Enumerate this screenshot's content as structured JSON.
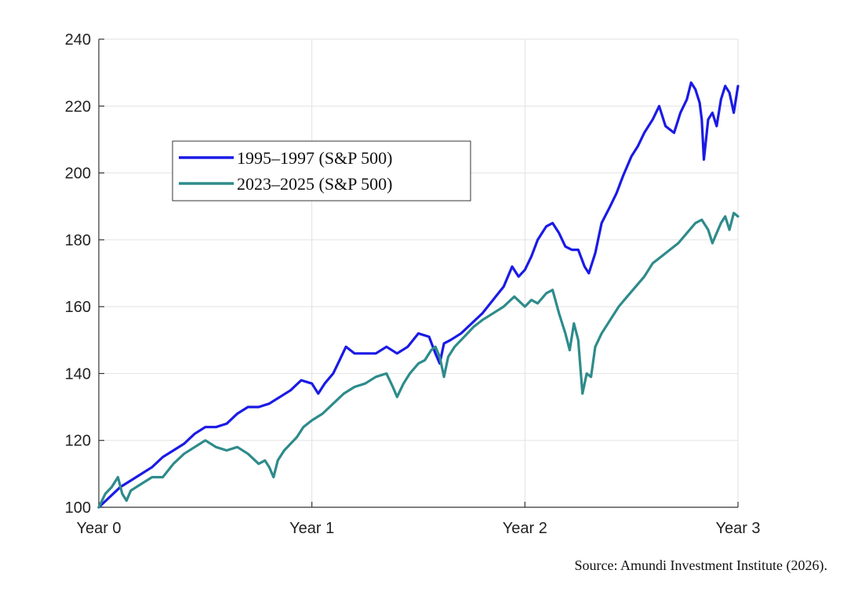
{
  "chart_data": {
    "type": "line",
    "title": "",
    "xlabel": "",
    "ylabel": "",
    "xlim": [
      0,
      3
    ],
    "ylim": [
      100,
      240
    ],
    "x_ticks": [
      0,
      1,
      2,
      3
    ],
    "x_tick_labels": [
      "Year 0",
      "Year 1",
      "Year 2",
      "Year 3"
    ],
    "y_ticks": [
      100,
      120,
      140,
      160,
      180,
      200,
      220,
      240
    ],
    "y_tick_labels": [
      "100",
      "120",
      "140",
      "160",
      "180",
      "200",
      "220",
      "240"
    ],
    "grid": true,
    "legend_placement": "upper-left",
    "series": [
      {
        "name": "1995–1997 (S&P 500)",
        "color": "#1a1ae6",
        "points": [
          [
            0.0,
            100
          ],
          [
            0.05,
            103
          ],
          [
            0.1,
            106
          ],
          [
            0.15,
            108
          ],
          [
            0.2,
            110
          ],
          [
            0.25,
            112
          ],
          [
            0.3,
            115
          ],
          [
            0.35,
            117
          ],
          [
            0.4,
            119
          ],
          [
            0.45,
            122
          ],
          [
            0.5,
            124
          ],
          [
            0.55,
            124
          ],
          [
            0.6,
            125
          ],
          [
            0.65,
            128
          ],
          [
            0.7,
            130
          ],
          [
            0.75,
            130
          ],
          [
            0.8,
            131
          ],
          [
            0.85,
            133
          ],
          [
            0.9,
            135
          ],
          [
            0.95,
            138
          ],
          [
            1.0,
            137
          ],
          [
            1.03,
            134
          ],
          [
            1.06,
            137
          ],
          [
            1.1,
            140
          ],
          [
            1.13,
            144
          ],
          [
            1.16,
            148
          ],
          [
            1.2,
            146
          ],
          [
            1.25,
            146
          ],
          [
            1.3,
            146
          ],
          [
            1.35,
            148
          ],
          [
            1.4,
            146
          ],
          [
            1.45,
            148
          ],
          [
            1.5,
            152
          ],
          [
            1.55,
            151
          ],
          [
            1.58,
            146
          ],
          [
            1.6,
            143
          ],
          [
            1.62,
            149
          ],
          [
            1.65,
            150
          ],
          [
            1.7,
            152
          ],
          [
            1.75,
            155
          ],
          [
            1.8,
            158
          ],
          [
            1.85,
            162
          ],
          [
            1.9,
            166
          ],
          [
            1.94,
            172
          ],
          [
            1.97,
            169
          ],
          [
            2.0,
            171
          ],
          [
            2.03,
            175
          ],
          [
            2.06,
            180
          ],
          [
            2.1,
            184
          ],
          [
            2.13,
            185
          ],
          [
            2.16,
            182
          ],
          [
            2.19,
            178
          ],
          [
            2.22,
            177
          ],
          [
            2.25,
            177
          ],
          [
            2.28,
            172
          ],
          [
            2.3,
            170
          ],
          [
            2.33,
            176
          ],
          [
            2.36,
            185
          ],
          [
            2.4,
            190
          ],
          [
            2.43,
            194
          ],
          [
            2.46,
            199
          ],
          [
            2.5,
            205
          ],
          [
            2.53,
            208
          ],
          [
            2.56,
            212
          ],
          [
            2.6,
            216
          ],
          [
            2.63,
            220
          ],
          [
            2.66,
            214
          ],
          [
            2.7,
            212
          ],
          [
            2.73,
            218
          ],
          [
            2.76,
            222
          ],
          [
            2.78,
            227
          ],
          [
            2.8,
            225
          ],
          [
            2.82,
            221
          ],
          [
            2.83,
            216
          ],
          [
            2.84,
            204
          ],
          [
            2.86,
            216
          ],
          [
            2.88,
            218
          ],
          [
            2.9,
            214
          ],
          [
            2.92,
            222
          ],
          [
            2.94,
            226
          ],
          [
            2.96,
            224
          ],
          [
            2.98,
            218
          ],
          [
            3.0,
            226
          ]
        ]
      },
      {
        "name": "2023–2025 (S&P 500)",
        "color": "#2e8b8b",
        "points": [
          [
            0.0,
            100
          ],
          [
            0.03,
            104
          ],
          [
            0.06,
            106
          ],
          [
            0.09,
            109
          ],
          [
            0.11,
            104
          ],
          [
            0.13,
            102
          ],
          [
            0.15,
            105
          ],
          [
            0.2,
            107
          ],
          [
            0.25,
            109
          ],
          [
            0.3,
            109
          ],
          [
            0.35,
            113
          ],
          [
            0.4,
            116
          ],
          [
            0.45,
            118
          ],
          [
            0.5,
            120
          ],
          [
            0.55,
            118
          ],
          [
            0.6,
            117
          ],
          [
            0.65,
            118
          ],
          [
            0.7,
            116
          ],
          [
            0.75,
            113
          ],
          [
            0.78,
            114
          ],
          [
            0.8,
            112
          ],
          [
            0.82,
            109
          ],
          [
            0.84,
            114
          ],
          [
            0.87,
            117
          ],
          [
            0.9,
            119
          ],
          [
            0.93,
            121
          ],
          [
            0.96,
            124
          ],
          [
            1.0,
            126
          ],
          [
            1.05,
            128
          ],
          [
            1.1,
            131
          ],
          [
            1.15,
            134
          ],
          [
            1.2,
            136
          ],
          [
            1.25,
            137
          ],
          [
            1.3,
            139
          ],
          [
            1.35,
            140
          ],
          [
            1.38,
            136
          ],
          [
            1.4,
            133
          ],
          [
            1.43,
            137
          ],
          [
            1.46,
            140
          ],
          [
            1.5,
            143
          ],
          [
            1.53,
            144
          ],
          [
            1.56,
            147
          ],
          [
            1.58,
            148
          ],
          [
            1.6,
            145
          ],
          [
            1.62,
            139
          ],
          [
            1.64,
            145
          ],
          [
            1.67,
            148
          ],
          [
            1.7,
            150
          ],
          [
            1.73,
            152
          ],
          [
            1.76,
            154
          ],
          [
            1.8,
            156
          ],
          [
            1.85,
            158
          ],
          [
            1.9,
            160
          ],
          [
            1.95,
            163
          ],
          [
            2.0,
            160
          ],
          [
            2.03,
            162
          ],
          [
            2.06,
            161
          ],
          [
            2.1,
            164
          ],
          [
            2.13,
            165
          ],
          [
            2.16,
            158
          ],
          [
            2.19,
            152
          ],
          [
            2.21,
            147
          ],
          [
            2.23,
            155
          ],
          [
            2.25,
            150
          ],
          [
            2.27,
            134
          ],
          [
            2.29,
            140
          ],
          [
            2.31,
            139
          ],
          [
            2.33,
            148
          ],
          [
            2.36,
            152
          ],
          [
            2.4,
            156
          ],
          [
            2.44,
            160
          ],
          [
            2.48,
            163
          ],
          [
            2.52,
            166
          ],
          [
            2.56,
            169
          ],
          [
            2.6,
            173
          ],
          [
            2.64,
            175
          ],
          [
            2.68,
            177
          ],
          [
            2.72,
            179
          ],
          [
            2.76,
            182
          ],
          [
            2.8,
            185
          ],
          [
            2.83,
            186
          ],
          [
            2.86,
            183
          ],
          [
            2.88,
            179
          ],
          [
            2.9,
            182
          ],
          [
            2.92,
            185
          ],
          [
            2.94,
            187
          ],
          [
            2.96,
            183
          ],
          [
            2.98,
            188
          ],
          [
            3.0,
            187
          ]
        ]
      }
    ]
  },
  "source_note": "Source: Amundi Investment Institute (2026)."
}
